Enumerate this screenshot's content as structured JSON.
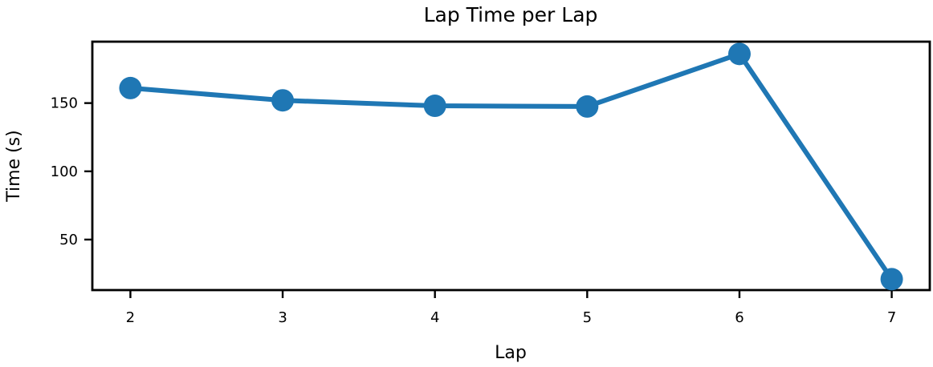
{
  "chart_data": {
    "type": "line",
    "title": "Lap Time per Lap",
    "xlabel": "Lap",
    "ylabel": "Time (s)",
    "x": [
      2,
      3,
      4,
      5,
      6,
      7
    ],
    "series": [
      {
        "values": [
          161,
          152,
          148,
          147.5,
          186,
          21
        ],
        "color": "#1f77b4"
      }
    ],
    "xticks": [
      "2",
      "3",
      "4",
      "5",
      "6",
      "7"
    ],
    "yticks": [
      "50",
      "100",
      "150"
    ],
    "xlim": [
      1.75,
      7.25
    ],
    "ylim": [
      13,
      195
    ],
    "grid": false,
    "legend": "none"
  }
}
